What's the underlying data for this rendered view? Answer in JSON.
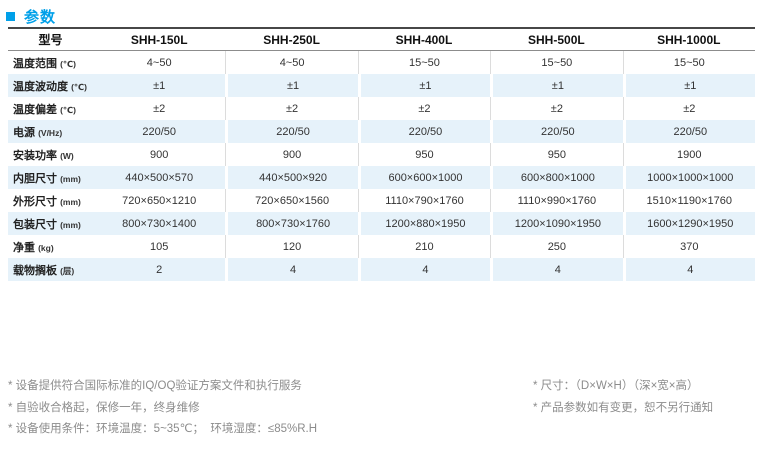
{
  "page": {
    "title": "参数"
  },
  "colors": {
    "accent_blue": "#00a0e9",
    "row_stripe": "#e6f2fa",
    "header_top_border": "#474747",
    "header_bottom_border": "#8c8c8c",
    "column_separator": "#dcdcdc",
    "label_text": "#222222",
    "note_gray": "#8c8c8c"
  },
  "table": {
    "corner_label": "型号",
    "models": [
      "SHH-150L",
      "SHH-250L",
      "SHH-400L",
      "SHH-500L",
      "SHH-1000L"
    ],
    "rows": [
      {
        "label": "温度范围",
        "unit": "(℃)",
        "values": [
          "4~50",
          "4~50",
          "15~50",
          "15~50",
          "15~50"
        ]
      },
      {
        "label": "温度波动度",
        "unit": "(℃)",
        "values": [
          "±1",
          "±1",
          "±1",
          "±1",
          "±1"
        ]
      },
      {
        "label": "温度偏差",
        "unit": "(℃)",
        "values": [
          "±2",
          "±2",
          "±2",
          "±2",
          "±2"
        ]
      },
      {
        "label": "电源",
        "unit": "(V/Hz)",
        "values": [
          "220/50",
          "220/50",
          "220/50",
          "220/50",
          "220/50"
        ]
      },
      {
        "label": "安装功率",
        "unit": "(W)",
        "values": [
          "900",
          "900",
          "950",
          "950",
          "1900"
        ]
      },
      {
        "label": "内胆尺寸",
        "unit": "(mm)",
        "values": [
          "440×500×570",
          "440×500×920",
          "600×600×1000",
          "600×800×1000",
          "1000×1000×1000"
        ]
      },
      {
        "label": "外形尺寸",
        "unit": "(mm)",
        "values": [
          "720×650×1210",
          "720×650×1560",
          "1110×790×1760",
          "1110×990×1760",
          "1510×1190×1760"
        ]
      },
      {
        "label": "包装尺寸",
        "unit": "(mm)",
        "values": [
          "800×730×1400",
          "800×730×1760",
          "1200×880×1950",
          "1200×1090×1950",
          "1600×1290×1950"
        ]
      },
      {
        "label": "净重",
        "unit": "(kg)",
        "values": [
          "105",
          "120",
          "210",
          "250",
          "370"
        ]
      },
      {
        "label": "载物搁板",
        "unit": "(层)",
        "values": [
          "2",
          "4",
          "4",
          "4",
          "4"
        ]
      }
    ]
  },
  "notes": {
    "left": [
      "* 设备提供符合国际标准的IQ/OQ验证方案文件和执行服务",
      "* 自验收合格起，保修一年，终身维修",
      "* 设备使用条件：环境温度：5~35℃；  环境湿度：≤85%R.H"
    ],
    "right": [
      "* 尺寸：（D×W×H）（深×宽×高）",
      "* 产品参数如有变更，恕不另行通知"
    ]
  }
}
